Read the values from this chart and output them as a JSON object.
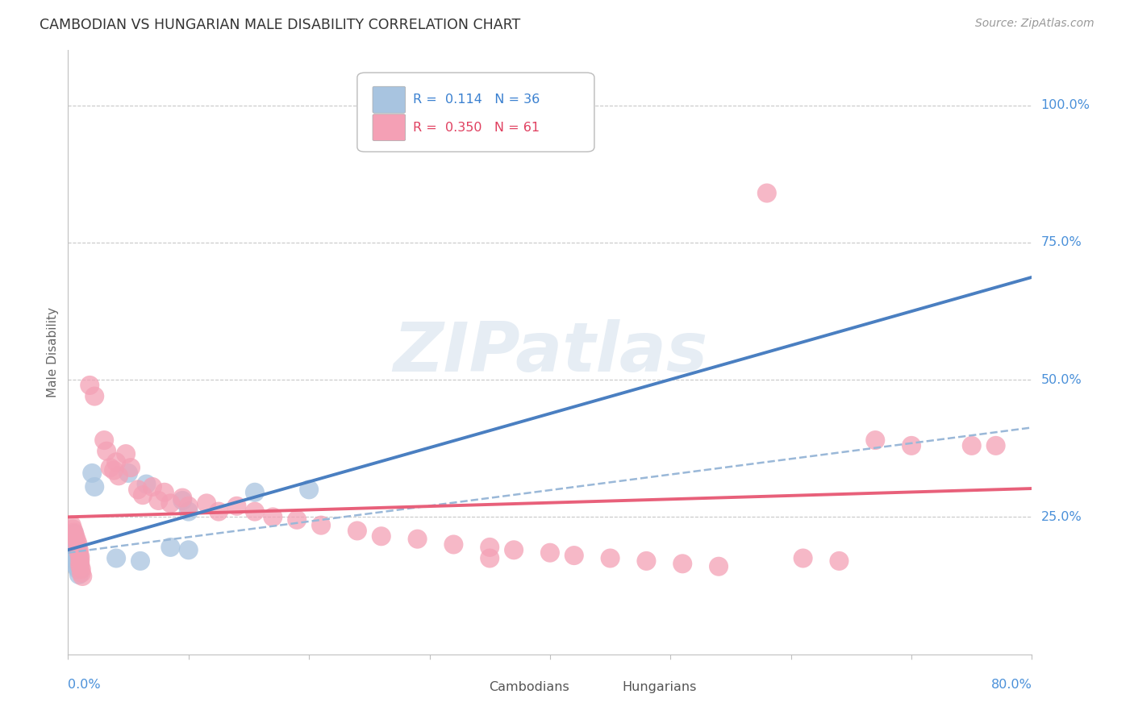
{
  "title": "CAMBODIAN VS HUNGARIAN MALE DISABILITY CORRELATION CHART",
  "source": "Source: ZipAtlas.com",
  "ylabel": "Male Disability",
  "ytick_labels": [
    "100.0%",
    "75.0%",
    "50.0%",
    "25.0%"
  ],
  "ytick_values": [
    1.0,
    0.75,
    0.5,
    0.25
  ],
  "xlim": [
    0.0,
    0.8
  ],
  "ylim": [
    0.0,
    1.1
  ],
  "legend_r1_text": "R =  0.114   N = 36",
  "legend_r2_text": "R =  0.350   N = 61",
  "cambodian_color": "#a8c4e0",
  "hungarian_color": "#f4a0b5",
  "trendline_cambodian_color": "#4a7fc1",
  "trendline_hungarian_color": "#e8607a",
  "trendline_combined_color": "#9ab8d8",
  "background_color": "#ffffff",
  "grid_color": "#c8c8c8",
  "watermark_text": "ZIPatlas",
  "cambodian_points": [
    [
      0.003,
      0.21
    ],
    [
      0.003,
      0.195
    ],
    [
      0.004,
      0.215
    ],
    [
      0.004,
      0.2
    ],
    [
      0.005,
      0.22
    ],
    [
      0.005,
      0.205
    ],
    [
      0.005,
      0.195
    ],
    [
      0.005,
      0.185
    ],
    [
      0.006,
      0.2
    ],
    [
      0.006,
      0.19
    ],
    [
      0.006,
      0.185
    ],
    [
      0.006,
      0.175
    ],
    [
      0.007,
      0.195
    ],
    [
      0.007,
      0.18
    ],
    [
      0.007,
      0.17
    ],
    [
      0.007,
      0.16
    ],
    [
      0.008,
      0.185
    ],
    [
      0.008,
      0.175
    ],
    [
      0.008,
      0.165
    ],
    [
      0.008,
      0.155
    ],
    [
      0.009,
      0.18
    ],
    [
      0.009,
      0.17
    ],
    [
      0.009,
      0.16
    ],
    [
      0.009,
      0.145
    ],
    [
      0.02,
      0.33
    ],
    [
      0.022,
      0.305
    ],
    [
      0.05,
      0.33
    ],
    [
      0.065,
      0.31
    ],
    [
      0.095,
      0.28
    ],
    [
      0.1,
      0.26
    ],
    [
      0.155,
      0.295
    ],
    [
      0.2,
      0.3
    ],
    [
      0.04,
      0.175
    ],
    [
      0.06,
      0.17
    ],
    [
      0.085,
      0.195
    ],
    [
      0.1,
      0.19
    ]
  ],
  "hungarian_points": [
    [
      0.003,
      0.235
    ],
    [
      0.004,
      0.228
    ],
    [
      0.005,
      0.222
    ],
    [
      0.006,
      0.215
    ],
    [
      0.007,
      0.208
    ],
    [
      0.008,
      0.202
    ],
    [
      0.008,
      0.195
    ],
    [
      0.009,
      0.19
    ],
    [
      0.009,
      0.185
    ],
    [
      0.01,
      0.178
    ],
    [
      0.01,
      0.172
    ],
    [
      0.01,
      0.165
    ],
    [
      0.01,
      0.16
    ],
    [
      0.011,
      0.155
    ],
    [
      0.011,
      0.148
    ],
    [
      0.012,
      0.142
    ],
    [
      0.018,
      0.49
    ],
    [
      0.022,
      0.47
    ],
    [
      0.03,
      0.39
    ],
    [
      0.032,
      0.37
    ],
    [
      0.035,
      0.34
    ],
    [
      0.038,
      0.335
    ],
    [
      0.04,
      0.35
    ],
    [
      0.042,
      0.325
    ],
    [
      0.048,
      0.365
    ],
    [
      0.052,
      0.34
    ],
    [
      0.058,
      0.3
    ],
    [
      0.062,
      0.29
    ],
    [
      0.07,
      0.305
    ],
    [
      0.075,
      0.28
    ],
    [
      0.08,
      0.295
    ],
    [
      0.085,
      0.275
    ],
    [
      0.095,
      0.285
    ],
    [
      0.1,
      0.27
    ],
    [
      0.115,
      0.275
    ],
    [
      0.125,
      0.26
    ],
    [
      0.14,
      0.27
    ],
    [
      0.155,
      0.26
    ],
    [
      0.17,
      0.25
    ],
    [
      0.19,
      0.245
    ],
    [
      0.21,
      0.235
    ],
    [
      0.24,
      0.225
    ],
    [
      0.26,
      0.215
    ],
    [
      0.29,
      0.21
    ],
    [
      0.32,
      0.2
    ],
    [
      0.35,
      0.195
    ],
    [
      0.37,
      0.19
    ],
    [
      0.4,
      0.185
    ],
    [
      0.42,
      0.18
    ],
    [
      0.45,
      0.175
    ],
    [
      0.48,
      0.17
    ],
    [
      0.51,
      0.165
    ],
    [
      0.54,
      0.16
    ],
    [
      0.58,
      0.84
    ],
    [
      0.61,
      0.175
    ],
    [
      0.64,
      0.17
    ],
    [
      0.67,
      0.39
    ],
    [
      0.7,
      0.38
    ],
    [
      0.75,
      0.38
    ],
    [
      0.77,
      0.38
    ],
    [
      0.35,
      0.175
    ]
  ]
}
